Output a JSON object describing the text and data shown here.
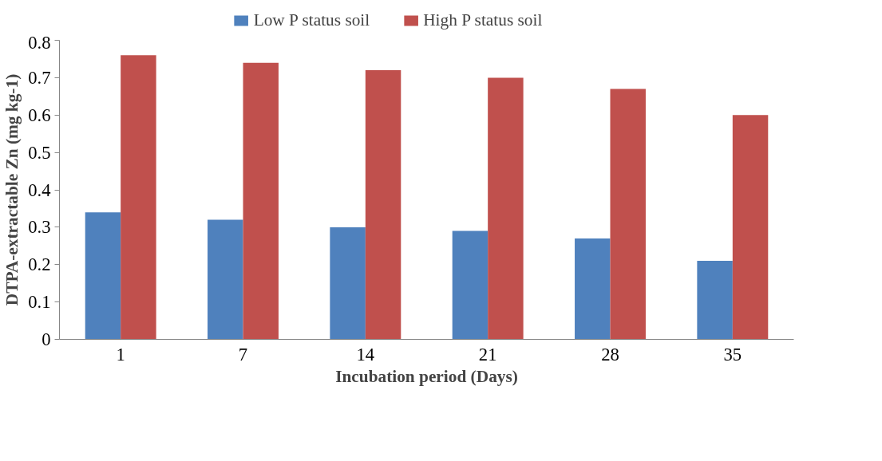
{
  "chart_data": {
    "type": "bar",
    "xlabel": "Incubation period (Days)",
    "ylabel": "DTPA-extractable Zn (mg kg-1)",
    "categories": [
      "1",
      "7",
      "14",
      "21",
      "28",
      "35"
    ],
    "series": [
      {
        "name": "Low P status soil",
        "color": "#4f81bd",
        "values": [
          0.34,
          0.32,
          0.3,
          0.29,
          0.27,
          0.21
        ]
      },
      {
        "name": "High P status soil",
        "color": "#c0504d",
        "values": [
          0.76,
          0.74,
          0.72,
          0.7,
          0.67,
          0.6
        ]
      }
    ],
    "ylim": [
      0,
      0.8
    ],
    "yticks": [
      0,
      {
        "value": 0.1,
        "label": "0.1"
      },
      {
        "value": 0.2,
        "label": "0.2"
      },
      {
        "value": 0.3,
        "label": "0.3"
      },
      {
        "value": 0.4,
        "label": "0.4"
      },
      {
        "value": 0.5,
        "label": "0.5"
      },
      {
        "value": 0.6,
        "label": "0.6"
      },
      {
        "value": 0.7,
        "label": "0.7"
      },
      {
        "value": 0.8,
        "label": "0.8"
      }
    ],
    "grid": false,
    "legend": "top"
  }
}
